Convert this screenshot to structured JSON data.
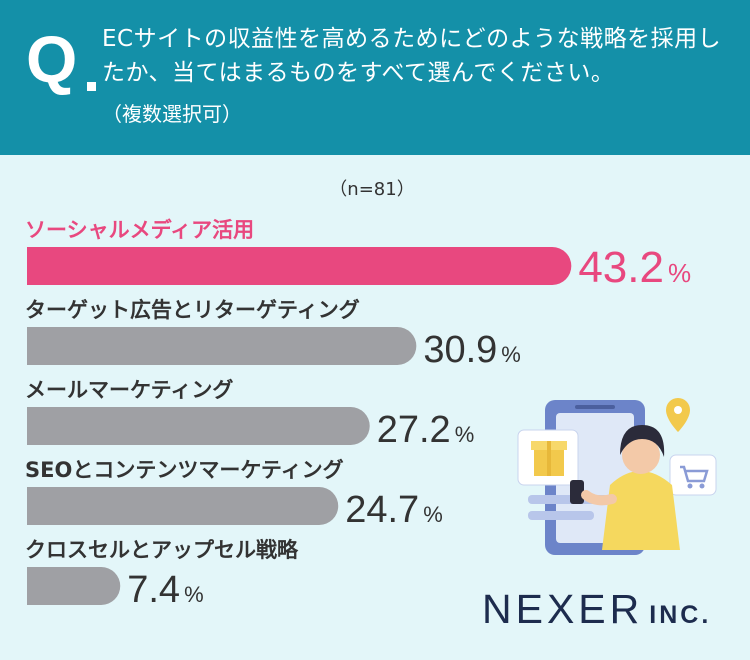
{
  "question": {
    "mark": "Q",
    "text": "ECサイトの収益性を高めるためにどのような戦略を採用したか、当てはまるものをすべて選んでください。",
    "subtext": "（複数選択可）"
  },
  "sample": "（n=81）",
  "colors": {
    "header_bg": "#1490a8",
    "page_bg": "#e3f6f9",
    "highlight": "#e8487f",
    "bar_default": "#9fa0a4",
    "value_default": "#333333"
  },
  "chart_data": {
    "type": "bar",
    "orientation": "horizontal",
    "unit": "%",
    "categories": [
      "ソーシャルメディア活用",
      "ターゲット広告とリターゲティング",
      "メールマーケティング",
      "SEOとコンテンツマーケティング",
      "クロスセルとアップセル戦略"
    ],
    "values": [
      43.2,
      30.9,
      27.2,
      24.7,
      7.4
    ],
    "value_labels": [
      "43.2",
      "30.9",
      "27.2",
      "24.7",
      "7.4"
    ],
    "highlight_index": 0
  },
  "logo": {
    "main": "NEXER",
    "sub": "INC."
  },
  "illustration": {
    "icons": [
      "smartphone-icon",
      "gift-icon",
      "location-pin-icon",
      "shopping-cart-icon",
      "person-icon"
    ]
  }
}
